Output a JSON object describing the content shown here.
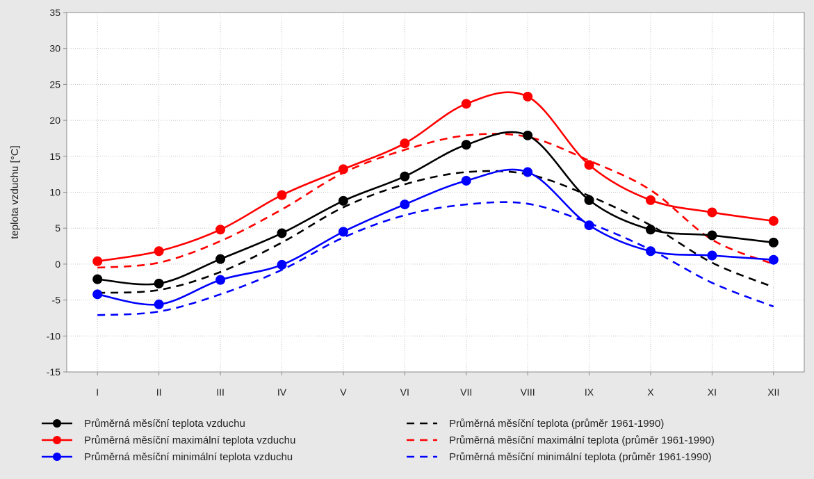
{
  "chart_data": {
    "type": "line",
    "title": "",
    "xlabel": "",
    "ylabel": "teplota vzduchu [°C]",
    "ylim": [
      -15,
      35
    ],
    "yticks": [
      -15,
      -10,
      -5,
      0,
      5,
      10,
      15,
      20,
      25,
      30,
      35
    ],
    "categories": [
      "I",
      "II",
      "III",
      "IV",
      "V",
      "VI",
      "VII",
      "VIII",
      "IX",
      "X",
      "XI",
      "XII"
    ],
    "grid": true,
    "legend_position": "bottom",
    "series": [
      {
        "name": "Průměrná měsíční teplota vzduchu",
        "color": "#000000",
        "style": "solid-markers",
        "values": [
          -2.1,
          -2.7,
          0.7,
          4.3,
          8.8,
          12.2,
          16.6,
          17.9,
          8.9,
          4.8,
          4.0,
          3.0
        ]
      },
      {
        "name": "Průměrná měsíční maximální teplota vzduchu",
        "color": "#ff0000",
        "style": "solid-markers",
        "values": [
          0.4,
          1.8,
          4.8,
          9.6,
          13.2,
          16.8,
          22.3,
          23.3,
          13.8,
          8.9,
          7.2,
          6.0
        ]
      },
      {
        "name": "Průměrná měsíční minimální teplota vzduchu",
        "color": "#0000ff",
        "style": "solid-markers",
        "values": [
          -4.2,
          -5.6,
          -2.2,
          -0.1,
          4.5,
          8.3,
          11.6,
          12.8,
          5.4,
          1.8,
          1.2,
          0.6
        ]
      },
      {
        "name": "Průměrná měsíční teplota (průměr 1961-1990)",
        "color": "#000000",
        "style": "dashed",
        "values": [
          -4.0,
          -3.6,
          -1.1,
          3.0,
          7.9,
          11.1,
          12.8,
          12.5,
          9.5,
          5.4,
          0.2,
          -3.2
        ]
      },
      {
        "name": "Průměrná měsíční maximální teplota (průměr 1961-1990)",
        "color": "#ff0000",
        "style": "dashed",
        "values": [
          -0.5,
          0.2,
          3.2,
          7.6,
          12.7,
          15.9,
          17.9,
          17.7,
          14.4,
          10.3,
          3.4,
          0.0
        ]
      },
      {
        "name": "Průměrná měsíční minimální teplota (průměr 1961-1990)",
        "color": "#0000ff",
        "style": "dashed",
        "values": [
          -7.1,
          -6.6,
          -4.2,
          -0.8,
          3.7,
          6.8,
          8.3,
          8.4,
          5.7,
          2.0,
          -2.6,
          -5.9
        ]
      }
    ]
  }
}
